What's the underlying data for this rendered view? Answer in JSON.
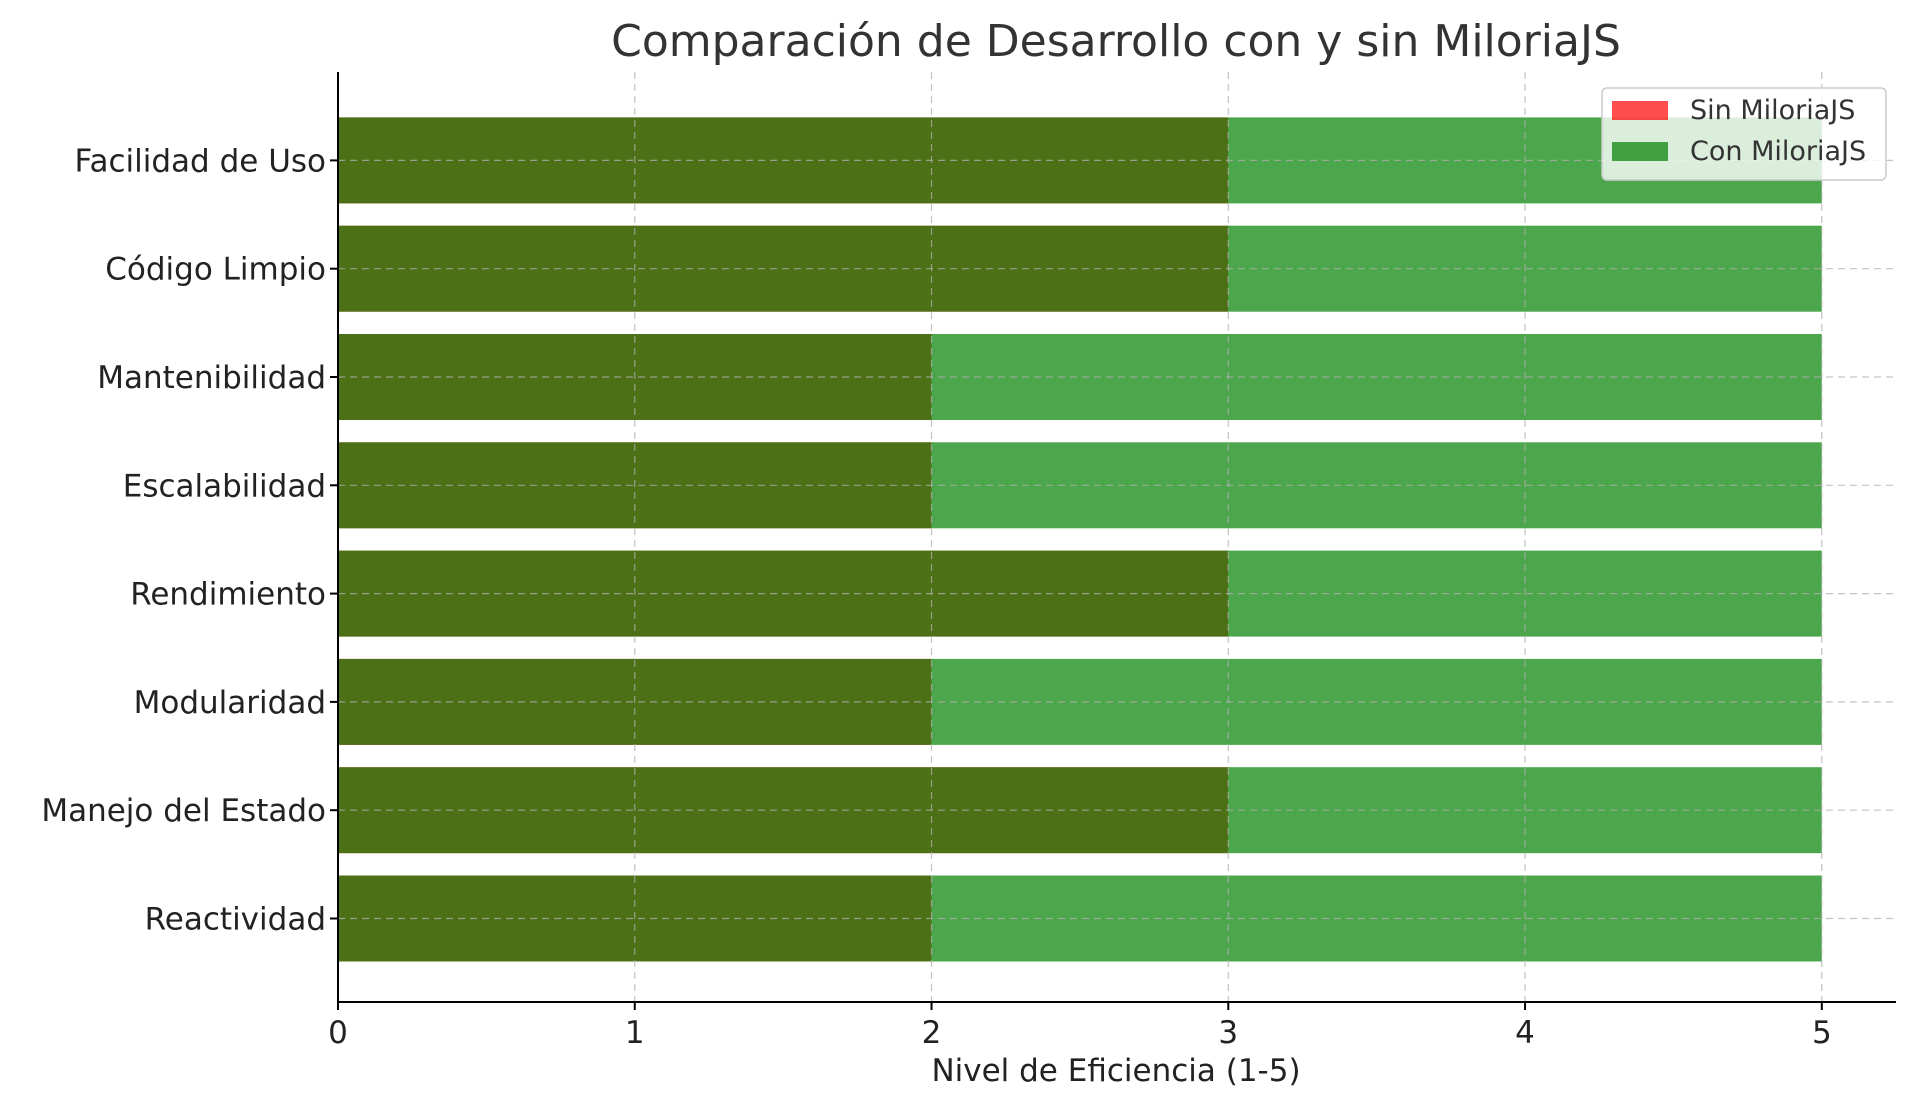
{
  "chart_data": {
    "type": "bar",
    "orientation": "horizontal",
    "title": "Comparación de Desarrollo con y sin MiloriaJS",
    "xlabel": "Nivel de Eficiencia (1-5)",
    "ylabel": "",
    "xlim": [
      0,
      5.25
    ],
    "xticks": [
      0,
      1,
      2,
      3,
      4,
      5
    ],
    "categories": [
      "Reactividad",
      "Manejo del Estado",
      "Modularidad",
      "Rendimiento",
      "Escalabilidad",
      "Mantenibilidad",
      "Código Limpio",
      "Facilidad de Uso"
    ],
    "series": [
      {
        "name": "Sin MiloriaJS",
        "color": "#ff0000",
        "opacity": 0.7,
        "values": [
          2,
          3,
          2,
          3,
          2,
          2,
          3,
          3
        ]
      },
      {
        "name": "Con MiloriaJS",
        "color": "#008000",
        "opacity": 0.7,
        "values": [
          5,
          5,
          5,
          5,
          5,
          5,
          5,
          5
        ]
      }
    ],
    "grid": true,
    "legend_position": "top-right"
  }
}
